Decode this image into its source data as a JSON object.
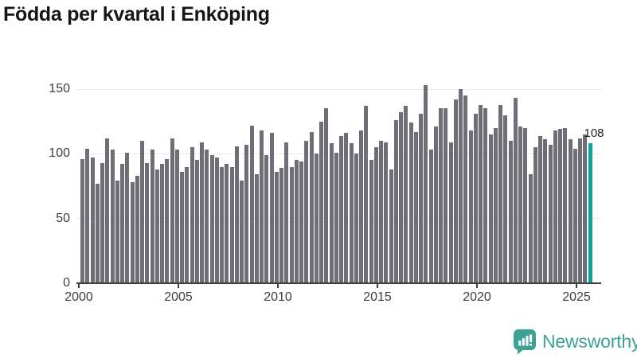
{
  "title": "Födda per kvartal i Enköping",
  "chart_data": {
    "type": "bar",
    "title": "Födda per kvartal i Enköping",
    "frequency": "quarterly",
    "start": "2000-Q1",
    "end": "2025-Q3",
    "values": [
      96,
      104,
      97,
      77,
      93,
      112,
      103,
      79,
      92,
      101,
      78,
      83,
      110,
      93,
      103,
      88,
      92,
      96,
      112,
      103,
      86,
      90,
      105,
      95,
      109,
      103,
      99,
      97,
      90,
      92,
      90,
      106,
      79,
      107,
      122,
      84,
      118,
      99,
      116,
      86,
      89,
      109,
      90,
      95,
      94,
      110,
      117,
      100,
      125,
      135,
      108,
      101,
      114,
      116,
      108,
      100,
      118,
      137,
      95,
      105,
      110,
      109,
      88,
      126,
      132,
      137,
      124,
      117,
      131,
      153,
      103,
      121,
      135,
      135,
      109,
      142,
      150,
      145,
      118,
      131,
      138,
      135,
      115,
      120,
      138,
      130,
      110,
      143,
      121,
      120,
      84,
      105,
      114,
      111,
      107,
      118,
      119,
      120,
      111,
      104,
      112,
      115,
      108
    ],
    "highlight": {
      "period": "2025-Q3",
      "value": 108,
      "label": "108",
      "color": "#0aa59e"
    },
    "bar_color": "#6e6e76",
    "xticks": [
      "2000",
      "2005",
      "2010",
      "2015",
      "2020",
      "2025"
    ],
    "yticks": [
      "0",
      "50",
      "100",
      "150"
    ],
    "ylim": [
      0,
      160
    ],
    "grid": "horizontal",
    "legend": "none"
  },
  "footer": {
    "brand": "Newsworthy"
  }
}
